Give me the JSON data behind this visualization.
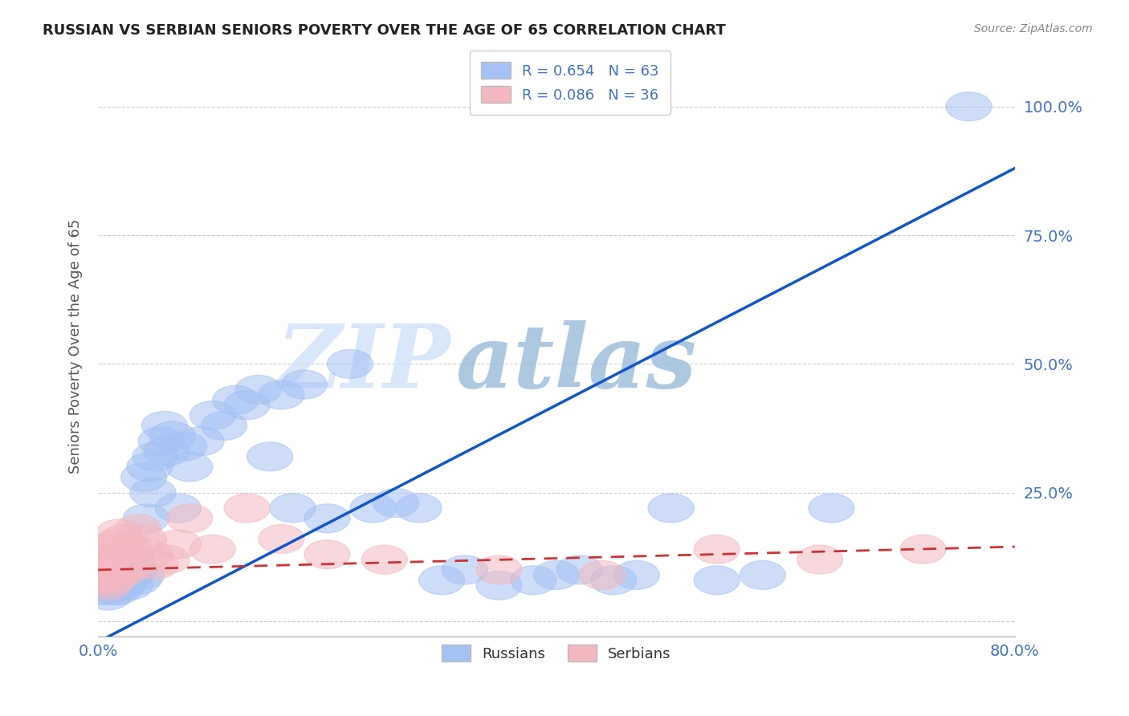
{
  "title": "RUSSIAN VS SERBIAN SENIORS POVERTY OVER THE AGE OF 65 CORRELATION CHART",
  "source": "Source: ZipAtlas.com",
  "ylabel": "Seniors Poverty Over the Age of 65",
  "xlim": [
    0.0,
    0.8
  ],
  "ylim": [
    -0.03,
    1.1
  ],
  "russian_R": "0.654",
  "russian_N": "63",
  "serbian_R": "0.086",
  "serbian_N": "36",
  "blue_color": "#a4c2f4",
  "pink_color": "#f4b8c1",
  "blue_line_color": "#1155cc",
  "pink_line_color": "#cc3333",
  "legend_label_russian": "Russians",
  "legend_label_serbian": "Serbians",
  "watermark_zip": "ZIP",
  "watermark_atlas": "atlas",
  "background_color": "#ffffff",
  "grid_color": "#cccccc",
  "title_color": "#222222",
  "axis_label_color": "#4472c4",
  "ylabel_color": "#555555",
  "yticks_vals": [
    0.0,
    0.25,
    0.5,
    0.75,
    1.0
  ],
  "ytick_labels": [
    "",
    "25.0%",
    "50.0%",
    "75.0%",
    "100.0%"
  ],
  "xtick_vals": [
    0.0,
    0.8
  ],
  "xtick_labels": [
    "0.0%",
    "80.0%"
  ],
  "russians_x": [
    0.005,
    0.007,
    0.009,
    0.01,
    0.012,
    0.013,
    0.014,
    0.015,
    0.016,
    0.017,
    0.018,
    0.019,
    0.02,
    0.021,
    0.022,
    0.023,
    0.025,
    0.027,
    0.028,
    0.03,
    0.032,
    0.035,
    0.038,
    0.04,
    0.042,
    0.045,
    0.048,
    0.05,
    0.055,
    0.058,
    0.06,
    0.065,
    0.07,
    0.075,
    0.08,
    0.09,
    0.1,
    0.11,
    0.12,
    0.13,
    0.14,
    0.15,
    0.16,
    0.17,
    0.18,
    0.2,
    0.22,
    0.24,
    0.26,
    0.28,
    0.3,
    0.32,
    0.35,
    0.38,
    0.4,
    0.42,
    0.45,
    0.47,
    0.5,
    0.54,
    0.58,
    0.64,
    0.76
  ],
  "russians_y": [
    0.06,
    0.08,
    0.05,
    0.1,
    0.07,
    0.09,
    0.06,
    0.08,
    0.07,
    0.06,
    0.1,
    0.08,
    0.09,
    0.07,
    0.11,
    0.08,
    0.1,
    0.09,
    0.07,
    0.12,
    0.1,
    0.08,
    0.09,
    0.28,
    0.2,
    0.3,
    0.25,
    0.32,
    0.35,
    0.38,
    0.33,
    0.36,
    0.22,
    0.34,
    0.3,
    0.35,
    0.4,
    0.38,
    0.43,
    0.42,
    0.45,
    0.32,
    0.44,
    0.22,
    0.46,
    0.2,
    0.5,
    0.22,
    0.23,
    0.22,
    0.08,
    0.1,
    0.07,
    0.08,
    0.09,
    0.1,
    0.08,
    0.09,
    0.22,
    0.08,
    0.09,
    0.22,
    1.0
  ],
  "serbians_x": [
    0.003,
    0.005,
    0.006,
    0.007,
    0.008,
    0.009,
    0.01,
    0.011,
    0.012,
    0.013,
    0.015,
    0.016,
    0.017,
    0.018,
    0.02,
    0.022,
    0.025,
    0.028,
    0.03,
    0.035,
    0.04,
    0.045,
    0.05,
    0.06,
    0.07,
    0.08,
    0.1,
    0.13,
    0.16,
    0.2,
    0.25,
    0.35,
    0.44,
    0.54,
    0.63,
    0.72
  ],
  "serbians_y": [
    0.08,
    0.1,
    0.12,
    0.09,
    0.14,
    0.07,
    0.11,
    0.13,
    0.08,
    0.1,
    0.15,
    0.12,
    0.09,
    0.17,
    0.13,
    0.16,
    0.1,
    0.14,
    0.11,
    0.18,
    0.16,
    0.13,
    0.11,
    0.12,
    0.15,
    0.2,
    0.14,
    0.22,
    0.16,
    0.13,
    0.12,
    0.1,
    0.09,
    0.14,
    0.12,
    0.14
  ]
}
